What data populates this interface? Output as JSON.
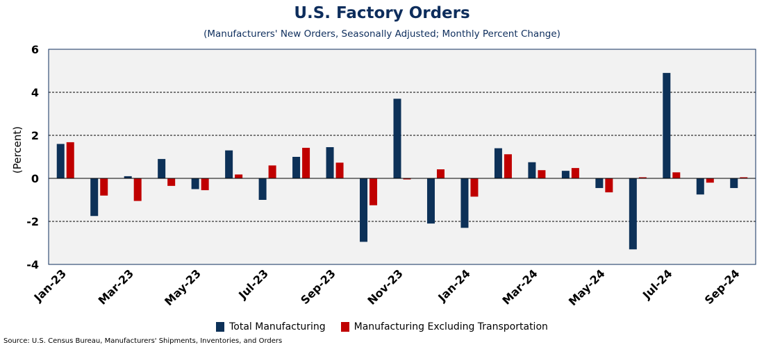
{
  "title": "U.S. Factory Orders",
  "subtitle": "(Manufacturers' New Orders, Seasonally Adjusted; Monthly Percent Change)",
  "source": "Source: U.S. Census Bureau, Manufacturers' Shipments, Inventories, and Orders",
  "colors": {
    "total": "#0d3158",
    "excl": "#c00000",
    "plot_bg": "#f2f2f2",
    "axis": "#0d2d5c"
  },
  "chart_data": {
    "type": "bar",
    "ylabel": "(Percent)",
    "xlabel": "",
    "ylim": [
      -4,
      6
    ],
    "yticks": [
      -4,
      -2,
      0,
      2,
      4,
      6
    ],
    "grid": "dashed horizontal",
    "legend_position": "bottom",
    "categories": [
      "Jan-23",
      "Feb-23",
      "Mar-23",
      "Apr-23",
      "May-23",
      "Jun-23",
      "Jul-23",
      "Aug-23",
      "Sep-23",
      "Oct-23",
      "Nov-23",
      "Dec-23",
      "Jan-24",
      "Feb-24",
      "Mar-24",
      "Apr-24",
      "May-24",
      "Jun-24",
      "Jul-24",
      "Aug-24",
      "Sep-24"
    ],
    "shown_tick_labels": [
      "Jan-23",
      "Mar-23",
      "May-23",
      "Jul-23",
      "Sep-23",
      "Nov-23",
      "Jan-24",
      "Mar-24",
      "May-24",
      "Jul-24",
      "Sep-24"
    ],
    "series": [
      {
        "name": "Total Manufacturing",
        "values": [
          1.6,
          -1.75,
          0.1,
          0.9,
          -0.5,
          1.3,
          -1.0,
          1.0,
          1.45,
          -2.95,
          3.7,
          -2.1,
          -2.3,
          1.4,
          0.75,
          0.35,
          -0.45,
          -3.3,
          4.9,
          -0.75,
          -0.45
        ]
      },
      {
        "name": "Manufacturing Excluding Transportation",
        "values": [
          1.68,
          -0.8,
          -1.05,
          -0.35,
          -0.55,
          0.18,
          0.6,
          1.42,
          0.73,
          -1.25,
          -0.05,
          0.42,
          -0.85,
          1.12,
          0.38,
          0.48,
          -0.65,
          0.05,
          0.28,
          -0.2,
          0.05
        ]
      }
    ]
  }
}
